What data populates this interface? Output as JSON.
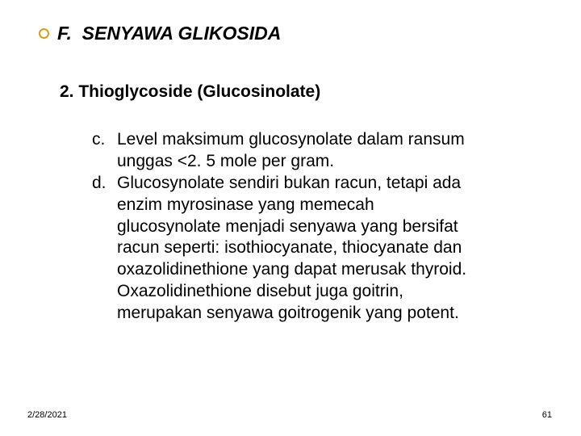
{
  "title": {
    "letter": "F.",
    "text": "SENYAWA GLIKOSIDA"
  },
  "subtitle": "2. Thioglycoside (Glucosinolate)",
  "item_c": {
    "label": "c.",
    "line1": "Level maksimum glucosynolate dalam ransum",
    "line2": "unggas <2. 5 mole per gram."
  },
  "item_d": {
    "label": "d.",
    "line1": "Glucosynolate sendiri bukan racun, tetapi ada",
    "line2": "enzim myrosinase yang memecah",
    "line3": "glucosynolate menjadi senyawa yang bersifat",
    "line4": "racun seperti: isothiocyanate, thiocyanate dan",
    "line5": "oxazolidinethione yang dapat merusak thyroid.",
    "line6": "Oxazolidinethione disebut juga goitrin,",
    "line7": "merupakan senyawa goitrogenik yang potent."
  },
  "footer": {
    "date": "2/28/2021",
    "page": "61"
  }
}
